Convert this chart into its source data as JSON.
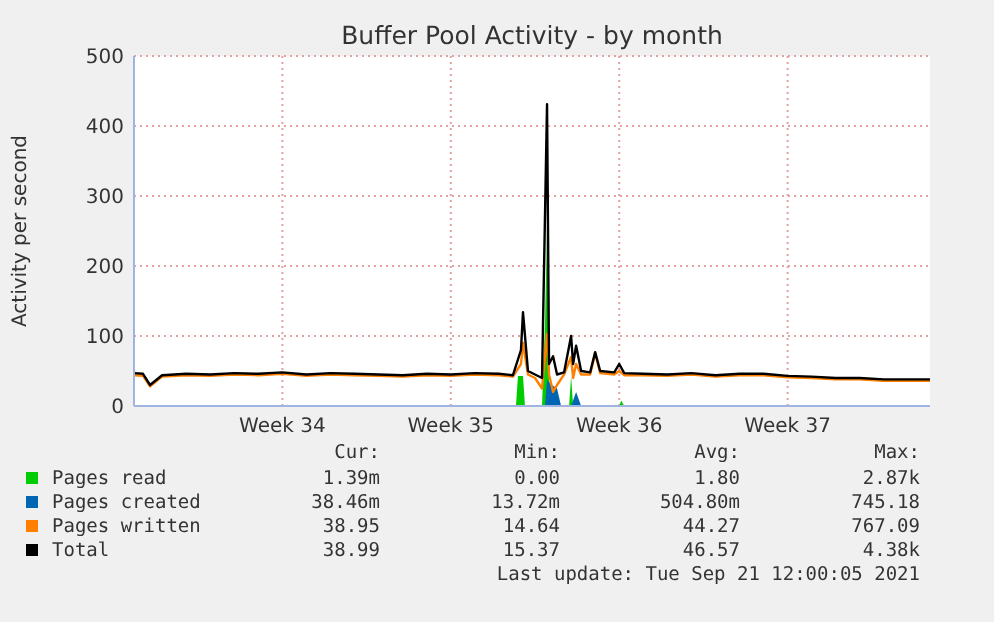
{
  "chart_data": {
    "type": "line",
    "title": "Buffer Pool Activity - by month",
    "ylabel": "Activity per second",
    "x": [
      "2021-08-20T08:00",
      "2021-08-20T17:00",
      "2021-08-21T00:00",
      "2021-08-21T12:00",
      "2021-08-22T12:00",
      "2021-08-23T12:00",
      "2021-08-24T12:00",
      "2021-08-25T12:00",
      "2021-08-26T12:00",
      "2021-08-27T12:00",
      "2021-08-28T12:00",
      "2021-08-29T12:00",
      "2021-08-30T12:00",
      "2021-08-31T12:00",
      "2021-09-01T12:00",
      "2021-09-02T12:00",
      "2021-09-03T12:00",
      "2021-09-04T12:00",
      "2021-09-05T02:00",
      "2021-09-05T10:00",
      "2021-09-05T12:00",
      "2021-09-05T17:00",
      "2021-09-06T00:00",
      "2021-09-06T07:00",
      "2021-09-06T12:00",
      "2021-09-06T14:00",
      "2021-09-06T18:00",
      "2021-09-06T22:00",
      "2021-09-07T05:00",
      "2021-09-07T12:00",
      "2021-09-07T14:00",
      "2021-09-07T17:00",
      "2021-09-07T22:00",
      "2021-09-08T07:00",
      "2021-09-08T12:00",
      "2021-09-08T17:00",
      "2021-09-09T07:00",
      "2021-09-09T12:00",
      "2021-09-09T17:00",
      "2021-09-10T12:00",
      "2021-09-11T12:00",
      "2021-09-12T12:00",
      "2021-09-13T12:00",
      "2021-09-14T12:00",
      "2021-09-15T12:00",
      "2021-09-16T12:00",
      "2021-09-17T12:00",
      "2021-09-18T12:00",
      "2021-09-19T12:00",
      "2021-09-20T12:00",
      "2021-09-21T12:00",
      "2021-09-22T10:00"
    ],
    "series": [
      {
        "name": "Pages read",
        "type": "area",
        "color": "#00cc00",
        "x": [
          "2021-08-20T08:00",
          "2021-09-05T05:00",
          "2021-09-05T07:00",
          "2021-09-05T12:00",
          "2021-09-05T14:00",
          "2021-09-06T07:00",
          "2021-09-06T10:00",
          "2021-09-06T12:00",
          "2021-09-06T14:00",
          "2021-09-06T19:00",
          "2021-09-07T10:00",
          "2021-09-07T12:00",
          "2021-09-07T14:00",
          "2021-09-07T19:00",
          "2021-09-09T12:00",
          "2021-09-09T14:00",
          "2021-09-09T17:00",
          "2021-09-22T10:00"
        ],
        "values": [
          0,
          0,
          43,
          43,
          0,
          0,
          120,
          260,
          30,
          0,
          0,
          43,
          0,
          0,
          0,
          8,
          0,
          0
        ]
      },
      {
        "name": "Pages created",
        "type": "area",
        "color": "#0066b3",
        "x": [
          "2021-08-20T08:00",
          "2021-09-06T10:00",
          "2021-09-06T12:00",
          "2021-09-06T17:00",
          "2021-09-06T22:00",
          "2021-09-07T02:00",
          "2021-09-07T12:00",
          "2021-09-07T17:00",
          "2021-09-07T22:00",
          "2021-09-22T10:00"
        ],
        "values": [
          0,
          0,
          37,
          30,
          25,
          0,
          0,
          20,
          0,
          0
        ]
      },
      {
        "name": "Pages written",
        "color": "#ff8000",
        "values": [
          44,
          43,
          28,
          42,
          44,
          43,
          45,
          44,
          46,
          43,
          45,
          44,
          43,
          42,
          44,
          43,
          45,
          44,
          42,
          60,
          90,
          45,
          40,
          25,
          103,
          45,
          20,
          30,
          45,
          70,
          40,
          60,
          45,
          45,
          75,
          47,
          45,
          50,
          44,
          44,
          43,
          45,
          42,
          44,
          44,
          41,
          40,
          38,
          38,
          36,
          36,
          36
        ]
      },
      {
        "name": "Total",
        "color": "#000000",
        "values": [
          47,
          46,
          30,
          44,
          46,
          45,
          47,
          46,
          48,
          45,
          47,
          46,
          45,
          44,
          46,
          45,
          47,
          46,
          44,
          80,
          134,
          50,
          45,
          40,
          431,
          60,
          71,
          45,
          48,
          100,
          60,
          86,
          50,
          48,
          77,
          50,
          48,
          60,
          47,
          46,
          45,
          47,
          44,
          46,
          46,
          43,
          42,
          40,
          40,
          38,
          38,
          38
        ]
      }
    ],
    "xlim": [
      "2021-08-20T08:00",
      "2021-09-22T10:00"
    ],
    "xticks": [
      {
        "value": "2021-08-26T12:00",
        "label": "Week 34"
      },
      {
        "value": "2021-09-02T12:00",
        "label": "Week 35"
      },
      {
        "value": "2021-09-09T12:00",
        "label": "Week 36"
      },
      {
        "value": "2021-09-16T12:00",
        "label": "Week 37"
      }
    ],
    "ylim": [
      0,
      500
    ],
    "yticks": [
      0,
      100,
      200,
      300,
      400,
      500
    ],
    "grid": true,
    "legend": "bottom",
    "annotations": [
      "Cur:",
      "Min:",
      "Avg:",
      "Max:",
      "1.39m",
      "0.00",
      "1.80",
      "2.87k",
      "38.46m",
      "13.72m",
      "504.80m",
      "745.18",
      "38.95",
      "14.64",
      "44.27",
      "767.09",
      "38.99",
      "15.37",
      "46.57",
      "4.38k",
      "Last update: Tue Sep 21 12:00:05 2021"
    ]
  }
}
